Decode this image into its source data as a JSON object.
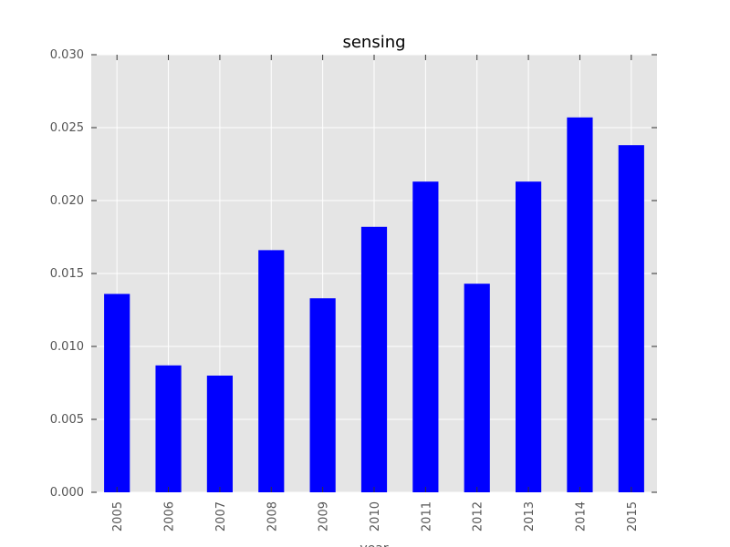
{
  "chart_data": {
    "type": "bar",
    "title": "sensing",
    "xlabel": "year",
    "ylabel": "",
    "categories": [
      "2005",
      "2006",
      "2007",
      "2008",
      "2009",
      "2010",
      "2011",
      "2012",
      "2013",
      "2014",
      "2015"
    ],
    "values": [
      0.0136,
      0.0087,
      0.008,
      0.0166,
      0.0133,
      0.0182,
      0.0213,
      0.0143,
      0.0213,
      0.0257,
      0.0238
    ],
    "ylim": [
      0,
      0.03
    ],
    "yticks": [
      "0.000",
      "0.005",
      "0.010",
      "0.015",
      "0.020",
      "0.025",
      "0.030"
    ],
    "grid": true,
    "legend": "none",
    "colors": {
      "bar": "#0000ff",
      "plot_background": "#e5e5e5",
      "grid": "#ffffff",
      "tick_label": "#555555"
    }
  }
}
